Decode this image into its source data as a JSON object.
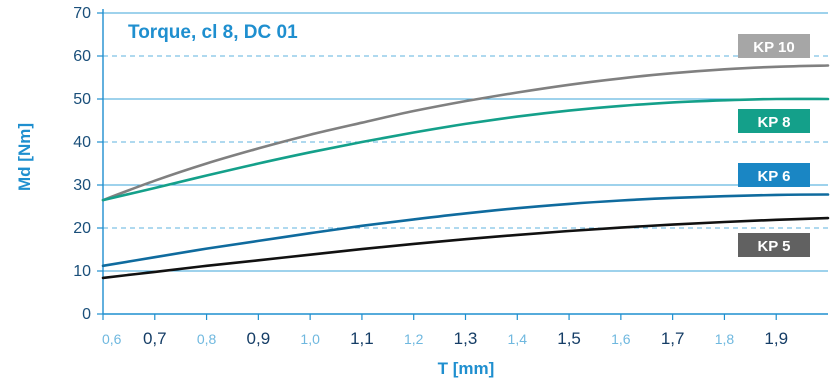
{
  "chart_data": {
    "type": "line",
    "title": "Torque, cl 8, DC 01",
    "xlabel": "T [mm]",
    "ylabel": "Md [Nm]",
    "xlim": [
      0.6,
      2.0
    ],
    "ylim": [
      0,
      70
    ],
    "yticks": [
      0,
      10,
      20,
      30,
      40,
      50,
      60,
      70
    ],
    "yticks_dashed": [
      20,
      40,
      60
    ],
    "xticks": [
      {
        "value": 0.6,
        "label": "0,6",
        "major": false
      },
      {
        "value": 0.7,
        "label": "0,7",
        "major": true
      },
      {
        "value": 0.8,
        "label": "0,8",
        "major": false
      },
      {
        "value": 0.9,
        "label": "0,9",
        "major": true
      },
      {
        "value": 1.0,
        "label": "1,0",
        "major": false
      },
      {
        "value": 1.1,
        "label": "1,1",
        "major": true
      },
      {
        "value": 1.2,
        "label": "1,2",
        "major": false
      },
      {
        "value": 1.3,
        "label": "1,3",
        "major": true
      },
      {
        "value": 1.4,
        "label": "1,4",
        "major": false
      },
      {
        "value": 1.5,
        "label": "1,5",
        "major": true
      },
      {
        "value": 1.6,
        "label": "1,6",
        "major": false
      },
      {
        "value": 1.7,
        "label": "1,7",
        "major": true
      },
      {
        "value": 1.8,
        "label": "1,8",
        "major": false
      },
      {
        "value": 1.9,
        "label": "1,9",
        "major": true
      }
    ],
    "grid": true,
    "series": [
      {
        "name": "KP 10",
        "color": "#808080",
        "x": [
          0.6,
          0.7,
          0.8,
          0.9,
          1.0,
          1.1,
          1.2,
          1.3,
          1.4,
          1.5,
          1.6,
          1.7,
          1.8,
          1.9,
          2.0
        ],
        "y": [
          26.5,
          31.0,
          35.0,
          38.5,
          41.7,
          44.5,
          47.2,
          49.5,
          51.5,
          53.3,
          54.8,
          56.0,
          56.9,
          57.5,
          57.8
        ]
      },
      {
        "name": "KP 8",
        "color": "#14a08a",
        "x": [
          0.6,
          0.7,
          0.8,
          0.9,
          1.0,
          1.1,
          1.2,
          1.3,
          1.4,
          1.5,
          1.6,
          1.7,
          1.8,
          1.9,
          2.0
        ],
        "y": [
          26.5,
          29.3,
          32.2,
          35.0,
          37.6,
          40.0,
          42.2,
          44.2,
          45.9,
          47.3,
          48.4,
          49.2,
          49.7,
          50.0,
          50.0
        ]
      },
      {
        "name": "KP 6",
        "color": "#0f6b9e",
        "x": [
          0.6,
          0.7,
          0.8,
          0.9,
          1.0,
          1.1,
          1.2,
          1.3,
          1.4,
          1.5,
          1.6,
          1.7,
          1.8,
          1.9,
          2.0
        ],
        "y": [
          11.2,
          13.2,
          15.2,
          17.0,
          18.8,
          20.5,
          22.0,
          23.4,
          24.6,
          25.6,
          26.4,
          27.0,
          27.4,
          27.7,
          27.8
        ]
      },
      {
        "name": "KP 5",
        "color": "#111111",
        "x": [
          0.6,
          0.7,
          0.8,
          0.9,
          1.0,
          1.1,
          1.2,
          1.3,
          1.4,
          1.5,
          1.6,
          1.7,
          1.8,
          1.9,
          2.0
        ],
        "y": [
          8.4,
          9.8,
          11.2,
          12.5,
          13.8,
          15.1,
          16.3,
          17.4,
          18.4,
          19.3,
          20.1,
          20.8,
          21.4,
          21.9,
          22.3
        ]
      }
    ],
    "legend": [
      {
        "label": "KP 10",
        "color": "#a6a6a6"
      },
      {
        "label": "KP 8",
        "color": "#14a08a"
      },
      {
        "label": "KP 6",
        "color": "#1a86c4"
      },
      {
        "label": "KP 5",
        "color": "#616161"
      }
    ],
    "legend_placement": "right"
  }
}
